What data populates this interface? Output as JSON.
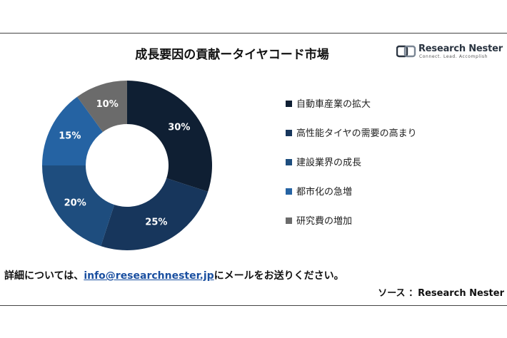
{
  "title": "成長要因の貢献ータイヤコード市場",
  "logo": {
    "name": "Research Nester",
    "tagline": "Connect. Lead. Accomplish"
  },
  "chart_data": {
    "type": "pie",
    "donut": true,
    "categories": [
      "自動車産業の拡大",
      "高性能タイヤの需要の高まり",
      "建設業界の成長",
      "都市化の急増",
      "研究費の増加"
    ],
    "values": [
      30,
      25,
      20,
      15,
      10
    ],
    "labels": [
      "30%",
      "25%",
      "20%",
      "15%",
      "10%"
    ],
    "colors": [
      "#0f1f33",
      "#17365c",
      "#1e4d7e",
      "#2563a3",
      "#6b6b6b"
    ],
    "legend_position": "right"
  },
  "footer": {
    "contact_prefix": "詳細については、",
    "contact_email": "info@researchnester.jp",
    "contact_suffix": "にメールをお送りください。",
    "source": "ソース ：Research Nester"
  }
}
